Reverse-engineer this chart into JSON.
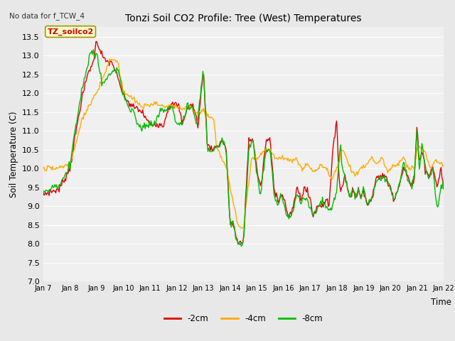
{
  "title": "Tonzi Soil CO2 Profile: Tree (West) Temperatures",
  "no_data_text": "No data for f_TCW_4",
  "ylabel": "Soil Temperature (C)",
  "xlabel": "Time",
  "annotation": "TZ_soilco2",
  "ylim": [
    7.0,
    13.75
  ],
  "yticks": [
    7.0,
    7.5,
    8.0,
    8.5,
    9.0,
    9.5,
    10.0,
    10.5,
    11.0,
    11.5,
    12.0,
    12.5,
    13.0,
    13.5
  ],
  "xtick_labels": [
    "Jan 7",
    "Jan 8",
    "Jan 9",
    "Jan 10",
    "Jan 11",
    "Jan 12",
    "Jan 13",
    "Jan 14",
    "Jan 15",
    "Jan 16",
    "Jan 17",
    "Jan 18",
    "Jan 19",
    "Jan 20",
    "Jan 21",
    "Jan 22"
  ],
  "colors": {
    "-2cm": "#dd0000",
    "-4cm": "#ffaa00",
    "-8cm": "#00bb00"
  },
  "legend_labels": [
    "-2cm",
    "-4cm",
    "-8cm"
  ],
  "bg_color": "#e8e8e8",
  "plot_bg": "#f0f0f0",
  "grid_color": "#ffffff",
  "line_width": 1.0,
  "n_points": 480
}
